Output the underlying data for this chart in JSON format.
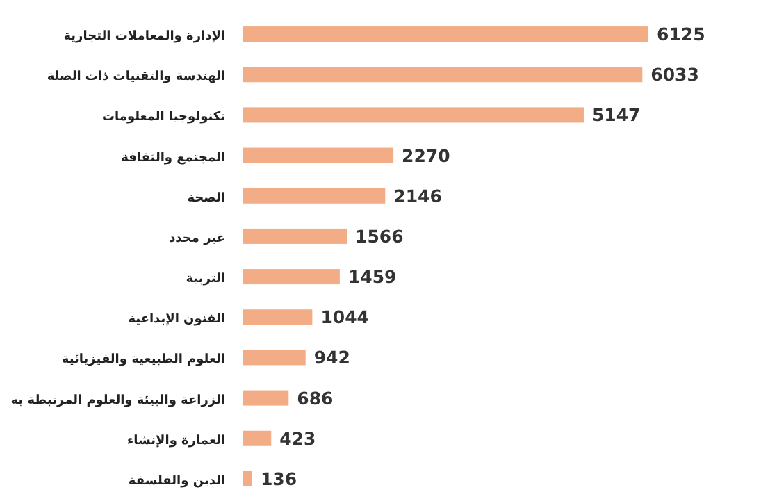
{
  "chart_data": {
    "type": "bar",
    "orientation": "horizontal",
    "data_labels": true,
    "color": "#f2ad86",
    "categories": [
      "الإدارة والمعاملات التجارية",
      "الهندسة والتقنيات ذات الصلة",
      "تكنولوجيا المعلومات",
      "المجتمع والثقافة",
      "الصحة",
      "غير محدد",
      "التربية",
      "الفنون الإبداعية",
      "العلوم الطبيعية والفيزيائية",
      "الزراعة والبيئة والعلوم المرتبطة به",
      "العمارة والإنشاء",
      "الدين والفلسفة"
    ],
    "values": [
      6125,
      6033,
      5147,
      2270,
      2146,
      1566,
      1459,
      1044,
      942,
      686,
      423,
      136
    ]
  }
}
